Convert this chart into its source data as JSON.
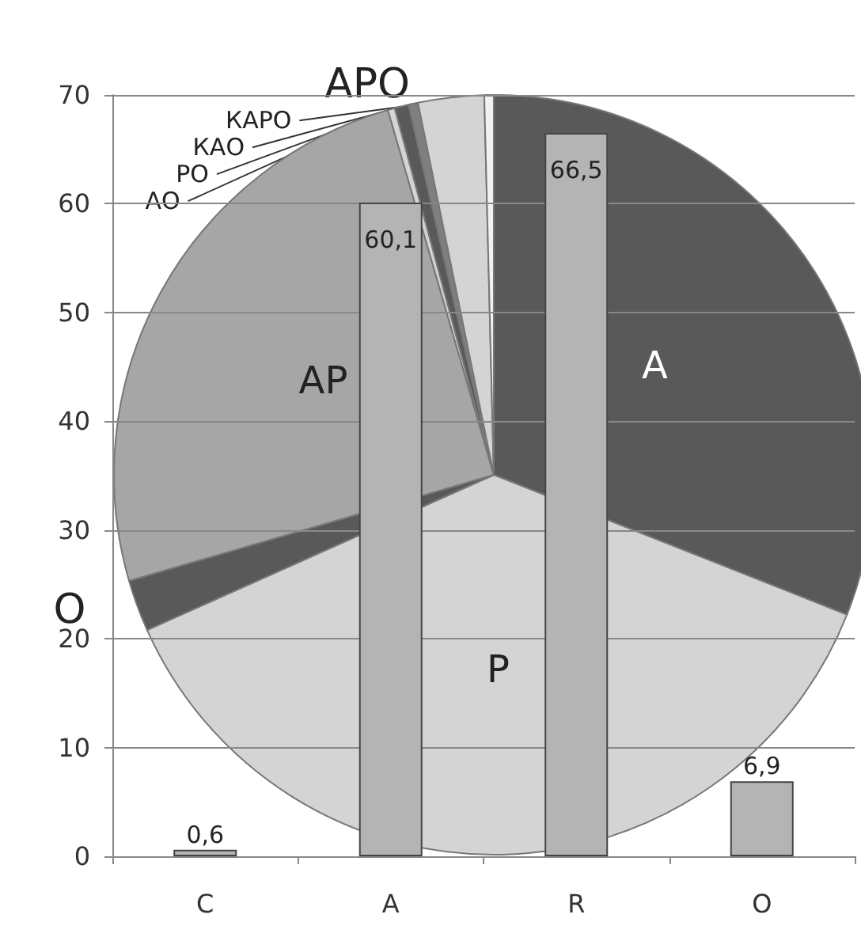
{
  "chart_data": [
    {
      "type": "pie",
      "categories": [
        "А",
        "Р",
        "О",
        "АР",
        "АО",
        "РО",
        "КАО",
        "АРО",
        "КАРО"
      ],
      "values": [
        31.0,
        37.3,
        2.2,
        25.0,
        0.3,
        0.6,
        0.4,
        2.8,
        0.4
      ],
      "colors": [
        "#595959",
        "#d4d4d4",
        "#595959",
        "#a6a6a6",
        "#d4d4d4",
        "#595959",
        "#7f7f7f",
        "#d4d4d4",
        "#f2f2f2"
      ]
    },
    {
      "type": "bar",
      "categories": [
        "C",
        "A",
        "R",
        "O"
      ],
      "values": [
        0.6,
        60.1,
        66.5,
        6.9
      ],
      "color": "#b4b4b4",
      "ylim": [
        0,
        70
      ],
      "yticks": [
        0,
        10,
        20,
        30,
        40,
        50,
        60,
        70
      ],
      "grid": "y",
      "data_labels": true,
      "value_labels": [
        "0,6",
        "60,1",
        "66,5",
        "6,9"
      ]
    }
  ]
}
